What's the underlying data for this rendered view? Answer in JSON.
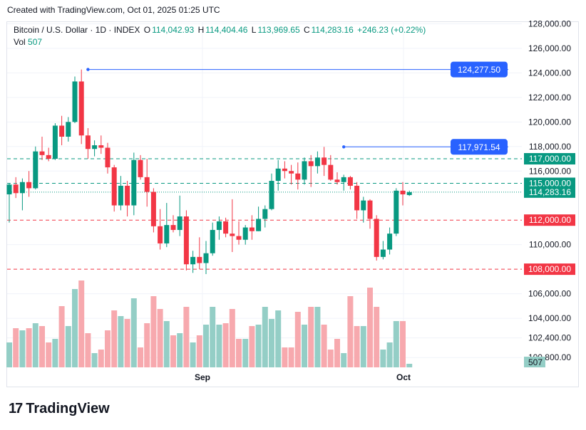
{
  "header": {
    "created": "Created with TradingView.com, Oct 01, 2025 01:25 UTC"
  },
  "legend": {
    "symbol": "Bitcoin / U.S. Dollar · 1D · INDEX",
    "o_label": "O",
    "o_value": "114,042.93",
    "h_label": "H",
    "h_value": "114,404.46",
    "l_label": "L",
    "l_value": "113,969.65",
    "c_label": "C",
    "c_value": "114,283.16",
    "change": "+246.23 (+0.22%)",
    "vol_label": "Vol",
    "vol_value": "507"
  },
  "footer": {
    "brand": "TradingView",
    "logo": "17"
  },
  "colors": {
    "up": "#089981",
    "down": "#f23645",
    "up_vol": "#94cec6",
    "down_vol": "#f7a9ae",
    "accent": "#2962ff"
  },
  "chart_data": {
    "type": "candlestick",
    "x_tick_labels": [
      "Sep",
      "Oct"
    ],
    "y_ticks": [
      100800,
      102400,
      104000,
      106000,
      110000,
      116000,
      118000,
      120000,
      122000,
      124000,
      126000,
      128000
    ],
    "y_tick_labels": [
      "100,800.00",
      "102,400.00",
      "104,000.00",
      "106,000.00",
      "110,000.00",
      "116,000.00",
      "118,000.00",
      "120,000.00",
      "122,000.00",
      "124,000.00",
      "126,000.00",
      "128,000.00"
    ],
    "ylim": [
      100000,
      128200
    ],
    "last_price": 114283.16,
    "last_price_label": "114,283.16",
    "last_volume_label": "507",
    "horizontal_levels": [
      {
        "value": 117000,
        "label": "117,000.00",
        "color": "#089981"
      },
      {
        "value": 115000,
        "label": "115,000.00",
        "color": "#089981"
      },
      {
        "value": 112000,
        "label": "112,000.00",
        "color": "#f23645"
      },
      {
        "value": 108000,
        "label": "108,000.00",
        "color": "#f23645"
      }
    ],
    "annotations": [
      {
        "value": 124277.5,
        "label": "124,277.50",
        "from_index": 12,
        "to_index": 58
      },
      {
        "value": 117971.54,
        "label": "117,971.54",
        "from_index": 51,
        "to_index": 58
      }
    ],
    "candles": [
      {
        "o": 114100,
        "h": 115000,
        "l": 111800,
        "c": 114900,
        "v": 0.35
      },
      {
        "o": 114900,
        "h": 115500,
        "l": 113800,
        "c": 114200,
        "v": 0.55
      },
      {
        "o": 114200,
        "h": 115400,
        "l": 112800,
        "c": 115100,
        "v": 0.52
      },
      {
        "o": 115100,
        "h": 116000,
        "l": 113900,
        "c": 114600,
        "v": 0.55
      },
      {
        "o": 114600,
        "h": 118000,
        "l": 114500,
        "c": 117600,
        "v": 0.62
      },
      {
        "o": 117600,
        "h": 118800,
        "l": 116900,
        "c": 117300,
        "v": 0.58
      },
      {
        "o": 117300,
        "h": 117900,
        "l": 116800,
        "c": 117000,
        "v": 0.35
      },
      {
        "o": 117000,
        "h": 119900,
        "l": 116900,
        "c": 119700,
        "v": 0.4
      },
      {
        "o": 119700,
        "h": 120500,
        "l": 118100,
        "c": 118800,
        "v": 0.86
      },
      {
        "o": 118800,
        "h": 120400,
        "l": 118400,
        "c": 120000,
        "v": 0.58
      },
      {
        "o": 120000,
        "h": 123700,
        "l": 119900,
        "c": 123300,
        "v": 1.1
      },
      {
        "o": 123300,
        "h": 124277,
        "l": 118200,
        "c": 118900,
        "v": 1.22
      },
      {
        "o": 118900,
        "h": 119500,
        "l": 117000,
        "c": 117800,
        "v": 0.48
      },
      {
        "o": 117800,
        "h": 118500,
        "l": 117200,
        "c": 118100,
        "v": 0.2
      },
      {
        "o": 118100,
        "h": 118900,
        "l": 117400,
        "c": 117900,
        "v": 0.25
      },
      {
        "o": 117900,
        "h": 118300,
        "l": 115800,
        "c": 116300,
        "v": 0.52
      },
      {
        "o": 116300,
        "h": 116500,
        "l": 112700,
        "c": 113200,
        "v": 0.8
      },
      {
        "o": 113200,
        "h": 115600,
        "l": 112800,
        "c": 114800,
        "v": 0.72
      },
      {
        "o": 114800,
        "h": 115200,
        "l": 112300,
        "c": 113200,
        "v": 0.68
      },
      {
        "o": 113200,
        "h": 117500,
        "l": 112400,
        "c": 116900,
        "v": 0.97
      },
      {
        "o": 116900,
        "h": 117300,
        "l": 115300,
        "c": 115500,
        "v": 0.28
      },
      {
        "o": 115500,
        "h": 117000,
        "l": 113100,
        "c": 114300,
        "v": 0.62
      },
      {
        "o": 114300,
        "h": 114600,
        "l": 111000,
        "c": 111500,
        "v": 1.0
      },
      {
        "o": 111500,
        "h": 112900,
        "l": 109600,
        "c": 110100,
        "v": 0.82
      },
      {
        "o": 110100,
        "h": 113400,
        "l": 109800,
        "c": 111600,
        "v": 0.65
      },
      {
        "o": 111600,
        "h": 112400,
        "l": 111000,
        "c": 111200,
        "v": 0.45
      },
      {
        "o": 111200,
        "h": 114000,
        "l": 110700,
        "c": 112300,
        "v": 0.48
      },
      {
        "o": 112300,
        "h": 112800,
        "l": 107900,
        "c": 108400,
        "v": 0.85
      },
      {
        "o": 108400,
        "h": 109500,
        "l": 107700,
        "c": 109000,
        "v": 0.35
      },
      {
        "o": 109000,
        "h": 110600,
        "l": 108000,
        "c": 108500,
        "v": 0.45
      },
      {
        "o": 108500,
        "h": 110300,
        "l": 107600,
        "c": 109300,
        "v": 0.6
      },
      {
        "o": 109300,
        "h": 111800,
        "l": 109100,
        "c": 111200,
        "v": 0.85
      },
      {
        "o": 111200,
        "h": 112300,
        "l": 110400,
        "c": 111900,
        "v": 0.6
      },
      {
        "o": 111900,
        "h": 112200,
        "l": 110600,
        "c": 110900,
        "v": 0.62
      },
      {
        "o": 110900,
        "h": 113700,
        "l": 109400,
        "c": 110700,
        "v": 0.82
      },
      {
        "o": 110700,
        "h": 111900,
        "l": 110000,
        "c": 110400,
        "v": 0.4
      },
      {
        "o": 110400,
        "h": 111600,
        "l": 110000,
        "c": 111400,
        "v": 0.4
      },
      {
        "o": 111400,
        "h": 112400,
        "l": 110400,
        "c": 111100,
        "v": 0.58
      },
      {
        "o": 111100,
        "h": 113100,
        "l": 111100,
        "c": 112100,
        "v": 0.6
      },
      {
        "o": 112100,
        "h": 113200,
        "l": 111400,
        "c": 112900,
        "v": 0.85
      },
      {
        "o": 112900,
        "h": 115800,
        "l": 112800,
        "c": 115200,
        "v": 0.68
      },
      {
        "o": 115200,
        "h": 116900,
        "l": 114400,
        "c": 116200,
        "v": 0.8
      },
      {
        "o": 116200,
        "h": 116800,
        "l": 115400,
        "c": 116000,
        "v": 0.28
      },
      {
        "o": 116000,
        "h": 116500,
        "l": 114900,
        "c": 115800,
        "v": 0.28
      },
      {
        "o": 115800,
        "h": 116700,
        "l": 114500,
        "c": 115300,
        "v": 0.78
      },
      {
        "o": 115300,
        "h": 117100,
        "l": 114900,
        "c": 116800,
        "v": 0.6
      },
      {
        "o": 116800,
        "h": 117300,
        "l": 114700,
        "c": 116400,
        "v": 0.85
      },
      {
        "o": 116400,
        "h": 117600,
        "l": 115800,
        "c": 117100,
        "v": 0.85
      },
      {
        "o": 117100,
        "h": 117971,
        "l": 115600,
        "c": 116500,
        "v": 0.6
      },
      {
        "o": 116500,
        "h": 117300,
        "l": 115200,
        "c": 115300,
        "v": 0.25
      },
      {
        "o": 115300,
        "h": 115900,
        "l": 114900,
        "c": 115100,
        "v": 0.4
      },
      {
        "o": 115100,
        "h": 115700,
        "l": 114400,
        "c": 115500,
        "v": 0.2
      },
      {
        "o": 115500,
        "h": 115600,
        "l": 114500,
        "c": 114800,
        "v": 1.0
      },
      {
        "o": 114800,
        "h": 115100,
        "l": 112100,
        "c": 112800,
        "v": 0.58
      },
      {
        "o": 112800,
        "h": 113900,
        "l": 111800,
        "c": 113600,
        "v": 0.58
      },
      {
        "o": 113600,
        "h": 113700,
        "l": 111300,
        "c": 112100,
        "v": 1.12
      },
      {
        "o": 112100,
        "h": 112400,
        "l": 108700,
        "c": 109000,
        "v": 0.85
      },
      {
        "o": 109000,
        "h": 110300,
        "l": 108800,
        "c": 109600,
        "v": 0.25
      },
      {
        "o": 109600,
        "h": 111400,
        "l": 109200,
        "c": 110900,
        "v": 0.35
      },
      {
        "o": 110900,
        "h": 114600,
        "l": 110700,
        "c": 114400,
        "v": 0.65
      },
      {
        "o": 114400,
        "h": 115100,
        "l": 113200,
        "c": 114100,
        "v": 0.65
      },
      {
        "o": 114043,
        "h": 114404,
        "l": 113970,
        "c": 114283,
        "v": 0.05
      }
    ]
  }
}
